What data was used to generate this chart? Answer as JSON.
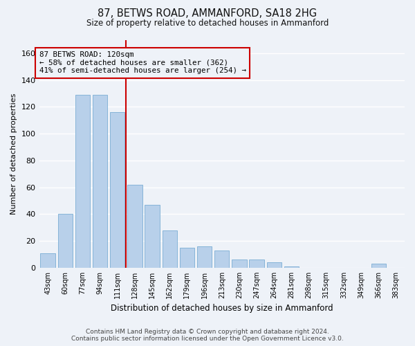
{
  "title": "87, BETWS ROAD, AMMANFORD, SA18 2HG",
  "subtitle": "Size of property relative to detached houses in Ammanford",
  "xlabel": "Distribution of detached houses by size in Ammanford",
  "ylabel": "Number of detached properties",
  "bar_labels": [
    "43sqm",
    "60sqm",
    "77sqm",
    "94sqm",
    "111sqm",
    "128sqm",
    "145sqm",
    "162sqm",
    "179sqm",
    "196sqm",
    "213sqm",
    "230sqm",
    "247sqm",
    "264sqm",
    "281sqm",
    "298sqm",
    "315sqm",
    "332sqm",
    "349sqm",
    "366sqm",
    "383sqm"
  ],
  "bar_values": [
    11,
    40,
    129,
    129,
    116,
    62,
    47,
    28,
    15,
    16,
    13,
    6,
    6,
    4,
    1,
    0,
    0,
    0,
    0,
    3,
    0
  ],
  "bar_color": "#b8d0ea",
  "bar_edge_color": "#7aadd4",
  "ylim": [
    0,
    170
  ],
  "yticks": [
    0,
    20,
    40,
    60,
    80,
    100,
    120,
    140,
    160
  ],
  "vline_x": 4.5,
  "vline_color": "#cc0000",
  "annotation_title": "87 BETWS ROAD: 120sqm",
  "annotation_line1": "← 58% of detached houses are smaller (362)",
  "annotation_line2": "41% of semi-detached houses are larger (254) →",
  "annotation_box_color": "#cc0000",
  "footer1": "Contains HM Land Registry data © Crown copyright and database right 2024.",
  "footer2": "Contains public sector information licensed under the Open Government Licence v3.0.",
  "bg_color": "#eef2f8",
  "grid_color": "#ffffff"
}
